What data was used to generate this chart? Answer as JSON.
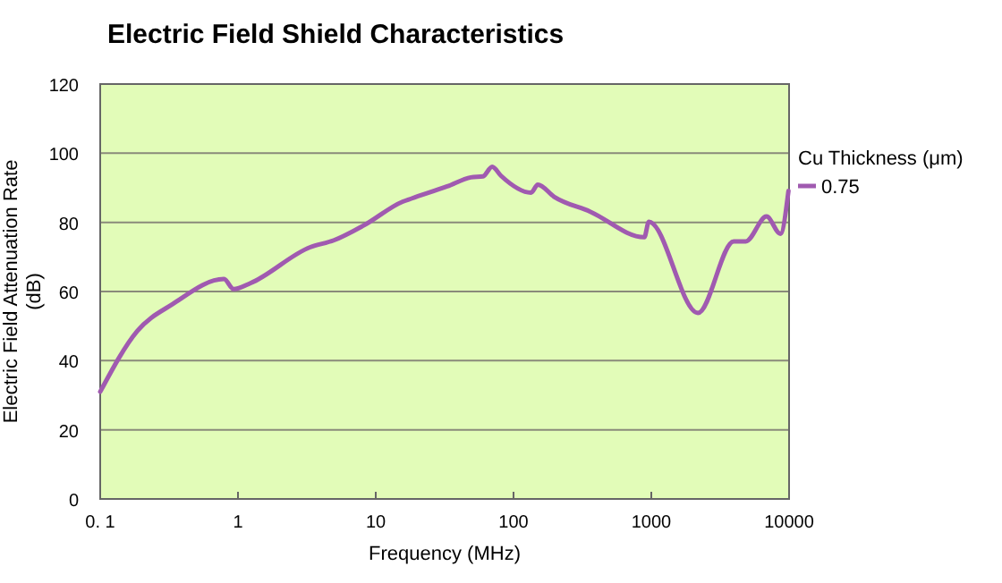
{
  "chart_data": {
    "type": "line",
    "title": "Electric Field Shield Characteristics",
    "xlabel": "Frequency (MHz)",
    "ylabel": "Electric Field Attenuation Rate\n(dB)",
    "legend_title": "Cu Thickness (μm)",
    "log": "x",
    "xlim": [
      0.1,
      10000
    ],
    "xticks": [
      {
        "value": 0.1,
        "label": "0. 1"
      },
      1,
      10,
      100,
      1000,
      10000
    ],
    "ylim": [
      0,
      120
    ],
    "yticks": [
      0,
      20,
      40,
      60,
      80,
      100,
      120
    ],
    "grid": "y",
    "legend": "right",
    "series": [
      {
        "name": "0.75",
        "color": "#a05ab0",
        "x": [
          0.1,
          0.186,
          0.337,
          0.79,
          0.93,
          1.23,
          3.34,
          4.96,
          8.18,
          15.7,
          18.2,
          33,
          49,
          60,
          70,
          81,
          134,
          150,
          197,
          360,
          890,
          960,
          2180,
          3970,
          4850,
          6860,
          8650,
          9900
        ],
        "values": [
          31,
          48.6,
          56.4,
          63.6,
          60.7,
          62.4,
          72.8,
          74.8,
          79.1,
          86,
          86.9,
          90.4,
          93,
          93.3,
          96.1,
          93.5,
          88.6,
          90.9,
          87.4,
          83.1,
          75.7,
          80.2,
          53.8,
          74.5,
          74.5,
          81.7,
          76.7,
          89.1
        ]
      }
    ]
  }
}
